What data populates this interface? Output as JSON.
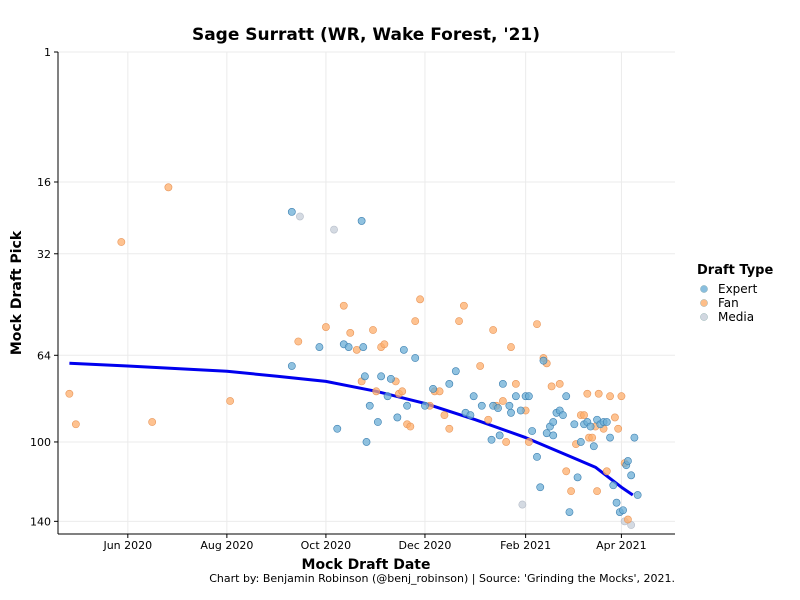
{
  "chart_data": {
    "type": "scatter",
    "title": "Sage Surratt (WR, Wake Forest, '21)",
    "xlabel": "Mock Draft Date",
    "ylabel": "Mock Draft Pick",
    "caption": "Chart by: Benjamin Robinson (@benj_robinson) | Source: 'Grinding the Mocks', 2021.",
    "x_ticks": [
      {
        "date": "2020-06-01",
        "label": "Jun 2020"
      },
      {
        "date": "2020-08-01",
        "label": "Aug 2020"
      },
      {
        "date": "2020-10-01",
        "label": "Oct 2020"
      },
      {
        "date": "2020-12-01",
        "label": "Dec 2020"
      },
      {
        "date": "2021-02-01",
        "label": "Feb 2021"
      },
      {
        "date": "2021-04-01",
        "label": "Apr 2021"
      }
    ],
    "y_ticks": [
      1,
      16,
      32,
      64,
      100,
      140
    ],
    "y_scale": "sqrt, reversed",
    "xlim": [
      "2020-04-19",
      "2021-05-04"
    ],
    "ylim": [
      147,
      1
    ],
    "grid": true,
    "legend": {
      "title": "Draft Type",
      "position": "right",
      "entries": [
        {
          "name": "Expert",
          "color": "#6baed6"
        },
        {
          "name": "Fan",
          "color": "#fdae6b"
        },
        {
          "name": "Media",
          "color": "#c6cdd8"
        }
      ]
    },
    "trend_color": "#0000ee",
    "trend": [
      {
        "x": "2020-04-26",
        "y": 67
      },
      {
        "x": "2020-06-01",
        "y": 68
      },
      {
        "x": "2020-08-01",
        "y": 70
      },
      {
        "x": "2020-09-01",
        "y": 72
      },
      {
        "x": "2020-10-01",
        "y": 74
      },
      {
        "x": "2020-11-01",
        "y": 78
      },
      {
        "x": "2020-12-01",
        "y": 83
      },
      {
        "x": "2021-01-01",
        "y": 90
      },
      {
        "x": "2021-02-01",
        "y": 98
      },
      {
        "x": "2021-03-01",
        "y": 107
      },
      {
        "x": "2021-03-16",
        "y": 112
      },
      {
        "x": "2021-04-01",
        "y": 122
      },
      {
        "x": "2021-04-08",
        "y": 126
      }
    ],
    "series": [
      {
        "name": "Expert",
        "color": "#6baed6",
        "points": [
          {
            "x": "2020-09-10",
            "y": 22
          },
          {
            "x": "2020-09-10",
            "y": 68
          },
          {
            "x": "2020-09-27",
            "y": 61
          },
          {
            "x": "2020-10-08",
            "y": 94
          },
          {
            "x": "2020-10-12",
            "y": 60
          },
          {
            "x": "2020-10-15",
            "y": 61
          },
          {
            "x": "2020-10-23",
            "y": 24
          },
          {
            "x": "2020-10-24",
            "y": 61
          },
          {
            "x": "2020-10-25",
            "y": 72
          },
          {
            "x": "2020-10-26",
            "y": 100
          },
          {
            "x": "2020-10-28",
            "y": 84
          },
          {
            "x": "2020-11-02",
            "y": 91
          },
          {
            "x": "2020-11-04",
            "y": 72
          },
          {
            "x": "2020-11-08",
            "y": 80
          },
          {
            "x": "2020-11-10",
            "y": 73
          },
          {
            "x": "2020-11-14",
            "y": 89
          },
          {
            "x": "2020-11-18",
            "y": 62
          },
          {
            "x": "2020-11-20",
            "y": 84
          },
          {
            "x": "2020-11-25",
            "y": 65
          },
          {
            "x": "2020-12-01",
            "y": 84
          },
          {
            "x": "2020-12-06",
            "y": 77
          },
          {
            "x": "2020-12-16",
            "y": 75
          },
          {
            "x": "2020-12-20",
            "y": 70
          },
          {
            "x": "2020-12-26",
            "y": 87
          },
          {
            "x": "2020-12-29",
            "y": 88
          },
          {
            "x": "2020-12-31",
            "y": 80
          },
          {
            "x": "2021-01-05",
            "y": 84
          },
          {
            "x": "2021-01-11",
            "y": 99
          },
          {
            "x": "2021-01-12",
            "y": 84
          },
          {
            "x": "2021-01-15",
            "y": 85
          },
          {
            "x": "2021-01-16",
            "y": 97
          },
          {
            "x": "2021-01-18",
            "y": 75
          },
          {
            "x": "2021-01-22",
            "y": 84
          },
          {
            "x": "2021-01-23",
            "y": 87
          },
          {
            "x": "2021-01-26",
            "y": 80
          },
          {
            "x": "2021-01-29",
            "y": 86
          },
          {
            "x": "2021-02-01",
            "y": 80
          },
          {
            "x": "2021-02-03",
            "y": 80
          },
          {
            "x": "2021-02-05",
            "y": 95
          },
          {
            "x": "2021-02-08",
            "y": 107
          },
          {
            "x": "2021-02-10",
            "y": 122
          },
          {
            "x": "2021-02-12",
            "y": 66
          },
          {
            "x": "2021-02-14",
            "y": 96
          },
          {
            "x": "2021-02-16",
            "y": 93
          },
          {
            "x": "2021-02-18",
            "y": 97
          },
          {
            "x": "2021-02-18",
            "y": 91
          },
          {
            "x": "2021-02-20",
            "y": 87
          },
          {
            "x": "2021-02-22",
            "y": 86
          },
          {
            "x": "2021-02-24",
            "y": 88
          },
          {
            "x": "2021-02-26",
            "y": 80
          },
          {
            "x": "2021-02-28",
            "y": 135
          },
          {
            "x": "2021-03-03",
            "y": 92
          },
          {
            "x": "2021-03-05",
            "y": 117
          },
          {
            "x": "2021-03-07",
            "y": 100
          },
          {
            "x": "2021-03-09",
            "y": 92
          },
          {
            "x": "2021-03-11",
            "y": 91
          },
          {
            "x": "2021-03-13",
            "y": 93
          },
          {
            "x": "2021-03-15",
            "y": 102
          },
          {
            "x": "2021-03-17",
            "y": 90
          },
          {
            "x": "2021-03-19",
            "y": 92
          },
          {
            "x": "2021-03-21",
            "y": 91
          },
          {
            "x": "2021-03-23",
            "y": 91
          },
          {
            "x": "2021-03-25",
            "y": 98
          },
          {
            "x": "2021-03-27",
            "y": 121
          },
          {
            "x": "2021-03-29",
            "y": 130
          },
          {
            "x": "2021-03-31",
            "y": 135
          },
          {
            "x": "2021-04-02",
            "y": 134
          },
          {
            "x": "2021-04-04",
            "y": 111
          },
          {
            "x": "2021-04-05",
            "y": 109
          },
          {
            "x": "2021-04-07",
            "y": 116
          },
          {
            "x": "2021-04-09",
            "y": 98
          },
          {
            "x": "2021-04-11",
            "y": 126
          }
        ]
      },
      {
        "name": "Fan",
        "color": "#fdae6b",
        "points": [
          {
            "x": "2020-04-26",
            "y": 79
          },
          {
            "x": "2020-04-30",
            "y": 92
          },
          {
            "x": "2020-05-28",
            "y": 29
          },
          {
            "x": "2020-06-16",
            "y": 91
          },
          {
            "x": "2020-06-26",
            "y": 17
          },
          {
            "x": "2020-08-03",
            "y": 82
          },
          {
            "x": "2020-09-14",
            "y": 59
          },
          {
            "x": "2020-10-01",
            "y": 54
          },
          {
            "x": "2020-10-12",
            "y": 47
          },
          {
            "x": "2020-10-16",
            "y": 56
          },
          {
            "x": "2020-10-20",
            "y": 62
          },
          {
            "x": "2020-10-23",
            "y": 74
          },
          {
            "x": "2020-10-30",
            "y": 55
          },
          {
            "x": "2020-11-01",
            "y": 78
          },
          {
            "x": "2020-11-04",
            "y": 61
          },
          {
            "x": "2020-11-06",
            "y": 60
          },
          {
            "x": "2020-11-13",
            "y": 74
          },
          {
            "x": "2020-11-15",
            "y": 79
          },
          {
            "x": "2020-11-17",
            "y": 78
          },
          {
            "x": "2020-11-20",
            "y": 92
          },
          {
            "x": "2020-11-22",
            "y": 93
          },
          {
            "x": "2020-11-25",
            "y": 52
          },
          {
            "x": "2020-11-28",
            "y": 45
          },
          {
            "x": "2020-12-04",
            "y": 84
          },
          {
            "x": "2020-12-07",
            "y": 78
          },
          {
            "x": "2020-12-10",
            "y": 78
          },
          {
            "x": "2020-12-13",
            "y": 88
          },
          {
            "x": "2020-12-16",
            "y": 94
          },
          {
            "x": "2020-12-22",
            "y": 52
          },
          {
            "x": "2020-12-25",
            "y": 47
          },
          {
            "x": "2021-01-04",
            "y": 68
          },
          {
            "x": "2021-01-09",
            "y": 90
          },
          {
            "x": "2021-01-12",
            "y": 55
          },
          {
            "x": "2021-01-14",
            "y": 84
          },
          {
            "x": "2021-01-18",
            "y": 82
          },
          {
            "x": "2021-01-20",
            "y": 100
          },
          {
            "x": "2021-01-23",
            "y": 61
          },
          {
            "x": "2021-01-26",
            "y": 75
          },
          {
            "x": "2021-02-01",
            "y": 86
          },
          {
            "x": "2021-02-03",
            "y": 100
          },
          {
            "x": "2021-02-08",
            "y": 53
          },
          {
            "x": "2021-02-12",
            "y": 65
          },
          {
            "x": "2021-02-14",
            "y": 67
          },
          {
            "x": "2021-02-17",
            "y": 76
          },
          {
            "x": "2021-02-22",
            "y": 75
          },
          {
            "x": "2021-02-26",
            "y": 114
          },
          {
            "x": "2021-03-01",
            "y": 124
          },
          {
            "x": "2021-03-04",
            "y": 101
          },
          {
            "x": "2021-03-07",
            "y": 88
          },
          {
            "x": "2021-03-09",
            "y": 88
          },
          {
            "x": "2021-03-11",
            "y": 79
          },
          {
            "x": "2021-03-12",
            "y": 98
          },
          {
            "x": "2021-03-14",
            "y": 98
          },
          {
            "x": "2021-03-16",
            "y": 93
          },
          {
            "x": "2021-03-17",
            "y": 124
          },
          {
            "x": "2021-03-18",
            "y": 79
          },
          {
            "x": "2021-03-21",
            "y": 94
          },
          {
            "x": "2021-03-23",
            "y": 114
          },
          {
            "x": "2021-03-25",
            "y": 80
          },
          {
            "x": "2021-03-28",
            "y": 89
          },
          {
            "x": "2021-03-30",
            "y": 94
          },
          {
            "x": "2021-04-01",
            "y": 80
          },
          {
            "x": "2021-04-03",
            "y": 110
          },
          {
            "x": "2021-04-05",
            "y": 139
          }
        ]
      },
      {
        "name": "Media",
        "color": "#c6cdd8",
        "points": [
          {
            "x": "2020-09-15",
            "y": 23
          },
          {
            "x": "2020-10-06",
            "y": 26
          },
          {
            "x": "2021-01-30",
            "y": 131
          },
          {
            "x": "2021-04-03",
            "y": 140
          },
          {
            "x": "2021-04-07",
            "y": 142
          }
        ]
      }
    ]
  }
}
